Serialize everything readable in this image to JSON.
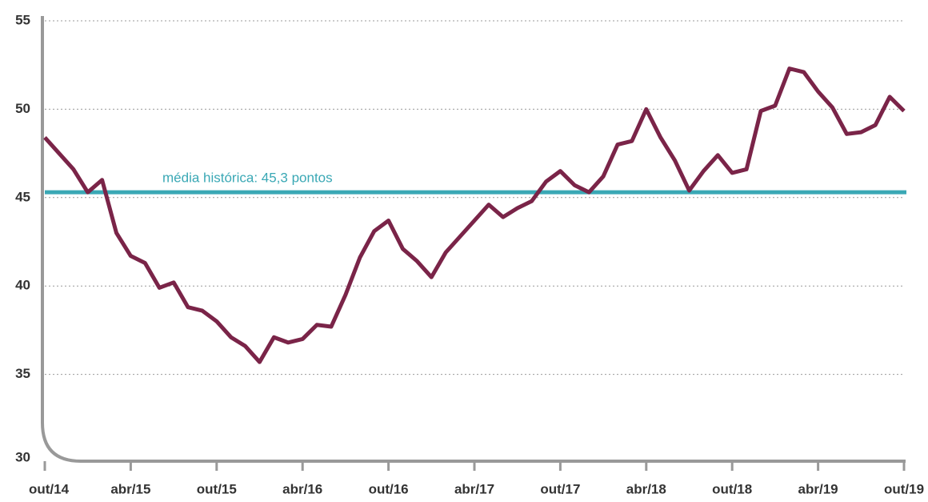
{
  "chart_data": {
    "type": "line",
    "categories": [
      "out/14",
      null,
      null,
      null,
      null,
      null,
      "abr/15",
      null,
      null,
      null,
      null,
      null,
      "out/15",
      null,
      null,
      null,
      null,
      null,
      "abr/16",
      null,
      null,
      null,
      null,
      null,
      "out/16",
      null,
      null,
      null,
      null,
      null,
      "abr/17",
      null,
      null,
      null,
      null,
      null,
      "out/17",
      null,
      null,
      null,
      null,
      null,
      "abr/18",
      null,
      null,
      null,
      null,
      null,
      "out/18",
      null,
      null,
      null,
      null,
      null,
      "abr/19",
      null,
      null,
      null,
      null,
      null,
      "out/19"
    ],
    "series": [
      {
        "color": "#7a2448",
        "values": [
          48.4,
          47.5,
          46.6,
          45.3,
          46.0,
          43.0,
          41.7,
          41.3,
          39.9,
          40.2,
          38.8,
          38.6,
          38.0,
          37.1,
          36.6,
          35.7,
          37.1,
          36.8,
          37.0,
          37.8,
          37.7,
          39.5,
          41.6,
          43.1,
          43.7,
          42.1,
          41.4,
          40.5,
          41.9,
          42.8,
          43.7,
          44.6,
          43.9,
          44.4,
          44.8,
          45.9,
          46.5,
          45.7,
          45.3,
          46.2,
          48.0,
          48.2,
          50.0,
          48.4,
          47.1,
          45.4,
          46.5,
          47.4,
          46.4,
          46.6,
          49.9,
          50.2,
          52.3,
          52.1,
          51.0,
          50.1,
          48.6,
          48.7,
          49.1,
          50.7,
          49.9
        ]
      }
    ],
    "reference": {
      "value": 45.3,
      "label": "média histórica: 45,3 pontos",
      "color": "#3aa8b5"
    },
    "ylim": [
      30,
      55
    ],
    "yticks": [
      30,
      35,
      40,
      45,
      50,
      55
    ],
    "grid": true
  }
}
